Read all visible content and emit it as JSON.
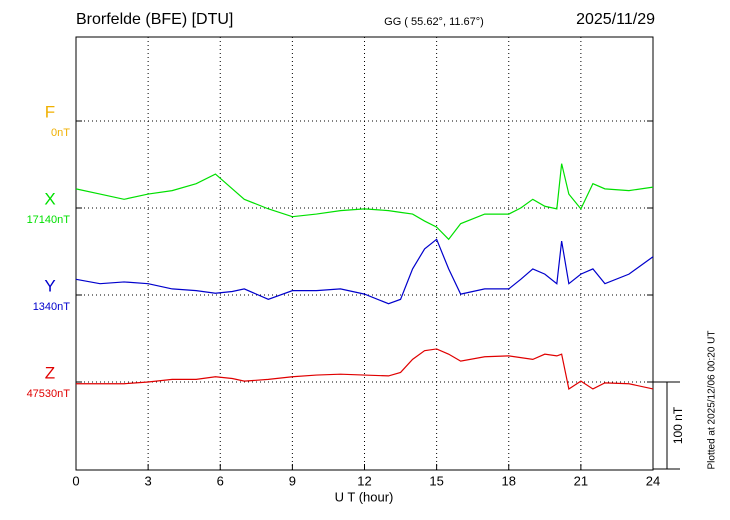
{
  "chart_data": {
    "type": "line",
    "title": "Brorfelde (BFE)  [DTU]",
    "subtitle": "GG ( 55.62°,  11.67°)",
    "date": "2025/11/29",
    "xlabel": "U T (hour)",
    "side_note": "Plotted at 2025/12/06 00:20 UT",
    "xlim": [
      0,
      24
    ],
    "xticks": [
      0,
      3,
      6,
      9,
      12,
      15,
      18,
      21,
      24
    ],
    "grid": true,
    "scale": {
      "value": 100,
      "label": "100 nT"
    },
    "x": [
      0,
      1,
      2,
      3,
      4,
      5,
      5.8,
      6.5,
      7,
      8,
      9,
      10,
      11,
      12,
      13,
      13.5,
      14,
      14.5,
      15,
      15.5,
      16,
      17,
      18,
      18.5,
      19,
      19.5,
      20,
      20.2,
      20.5,
      21,
      21.5,
      22,
      23,
      24
    ],
    "series": [
      {
        "name": "F",
        "color": "#f0b000",
        "baseline": {
          "value": 0,
          "label": "0nT"
        },
        "values": [
          null,
          null,
          null,
          null,
          null,
          null,
          null,
          null,
          null,
          null,
          null,
          null,
          null,
          null,
          null,
          null,
          null,
          null,
          null,
          null,
          null,
          null,
          null,
          null,
          null,
          null,
          null,
          null,
          null,
          null,
          null,
          null,
          null,
          null
        ]
      },
      {
        "name": "X",
        "color": "#00e000",
        "baseline": {
          "value": 17140,
          "label": "17140nT"
        },
        "values": [
          17162,
          17156,
          17150,
          17156,
          17160,
          17168,
          17179,
          17162,
          17150,
          17139,
          17130,
          17133,
          17137,
          17139,
          17137,
          17135,
          17133,
          17125,
          17118,
          17104,
          17122,
          17133,
          17133,
          17140,
          17150,
          17142,
          17139,
          17191,
          17156,
          17139,
          17168,
          17162,
          17160,
          17164
        ]
      },
      {
        "name": "Y",
        "color": "#0000cc",
        "baseline": {
          "value": 1340,
          "label": "1340nT"
        },
        "values": [
          1358,
          1353,
          1355,
          1353,
          1347,
          1345,
          1342,
          1344,
          1347,
          1335,
          1345,
          1345,
          1347,
          1341,
          1330,
          1335,
          1370,
          1393,
          1404,
          1370,
          1341,
          1347,
          1347,
          1358,
          1370,
          1364,
          1353,
          1402,
          1353,
          1364,
          1370,
          1353,
          1364,
          1384
        ]
      },
      {
        "name": "Z",
        "color": "#e00000",
        "baseline": {
          "value": 47530,
          "label": "47530nT"
        },
        "values": [
          47528,
          47528,
          47528,
          47530,
          47533,
          47533,
          47536,
          47534,
          47531,
          47533,
          47536,
          47538,
          47539,
          47538,
          47537,
          47541,
          47556,
          47566,
          47568,
          47562,
          47554,
          47559,
          47560,
          47558,
          47556,
          47562,
          47560,
          47562,
          47522,
          47531,
          47522,
          47529,
          47528,
          47522
        ]
      }
    ]
  }
}
